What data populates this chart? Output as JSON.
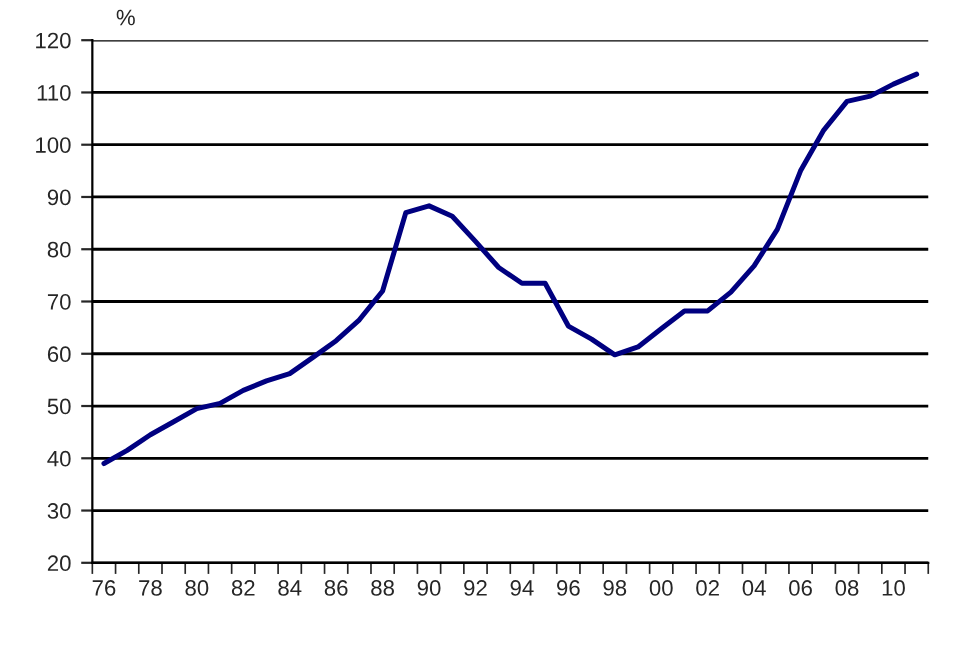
{
  "chart_data": {
    "type": "line",
    "ylabel": "%",
    "categories": [
      "76",
      null,
      "78",
      null,
      "80",
      null,
      "82",
      null,
      "84",
      null,
      "86",
      null,
      "88",
      null,
      "90",
      null,
      "92",
      null,
      "94",
      null,
      "96",
      null,
      "98",
      null,
      "00",
      null,
      "02",
      null,
      "04",
      null,
      "06",
      null,
      "08",
      null,
      "10",
      null
    ],
    "series": [
      {
        "color": "#000080",
        "values": [
          39,
          41.5,
          44.5,
          47,
          49.5,
          50.5,
          53,
          54.8,
          56.2,
          59.3,
          62.5,
          66.5,
          72,
          87,
          88.3,
          86.3,
          81.5,
          76.5,
          73.5,
          73.5,
          65.3,
          62.8,
          59.8,
          61.3,
          64.8,
          68.2,
          68.2,
          71.8,
          76.8,
          83.8,
          95,
          102.8,
          108.3,
          109.3,
          111.6,
          113.5
        ]
      }
    ],
    "ylim": [
      20,
      120
    ],
    "yticks": [
      20,
      30,
      40,
      50,
      60,
      70,
      80,
      90,
      100,
      110,
      120
    ],
    "grid": "y",
    "legend": false,
    "marker": "none",
    "line_style": "solid"
  }
}
